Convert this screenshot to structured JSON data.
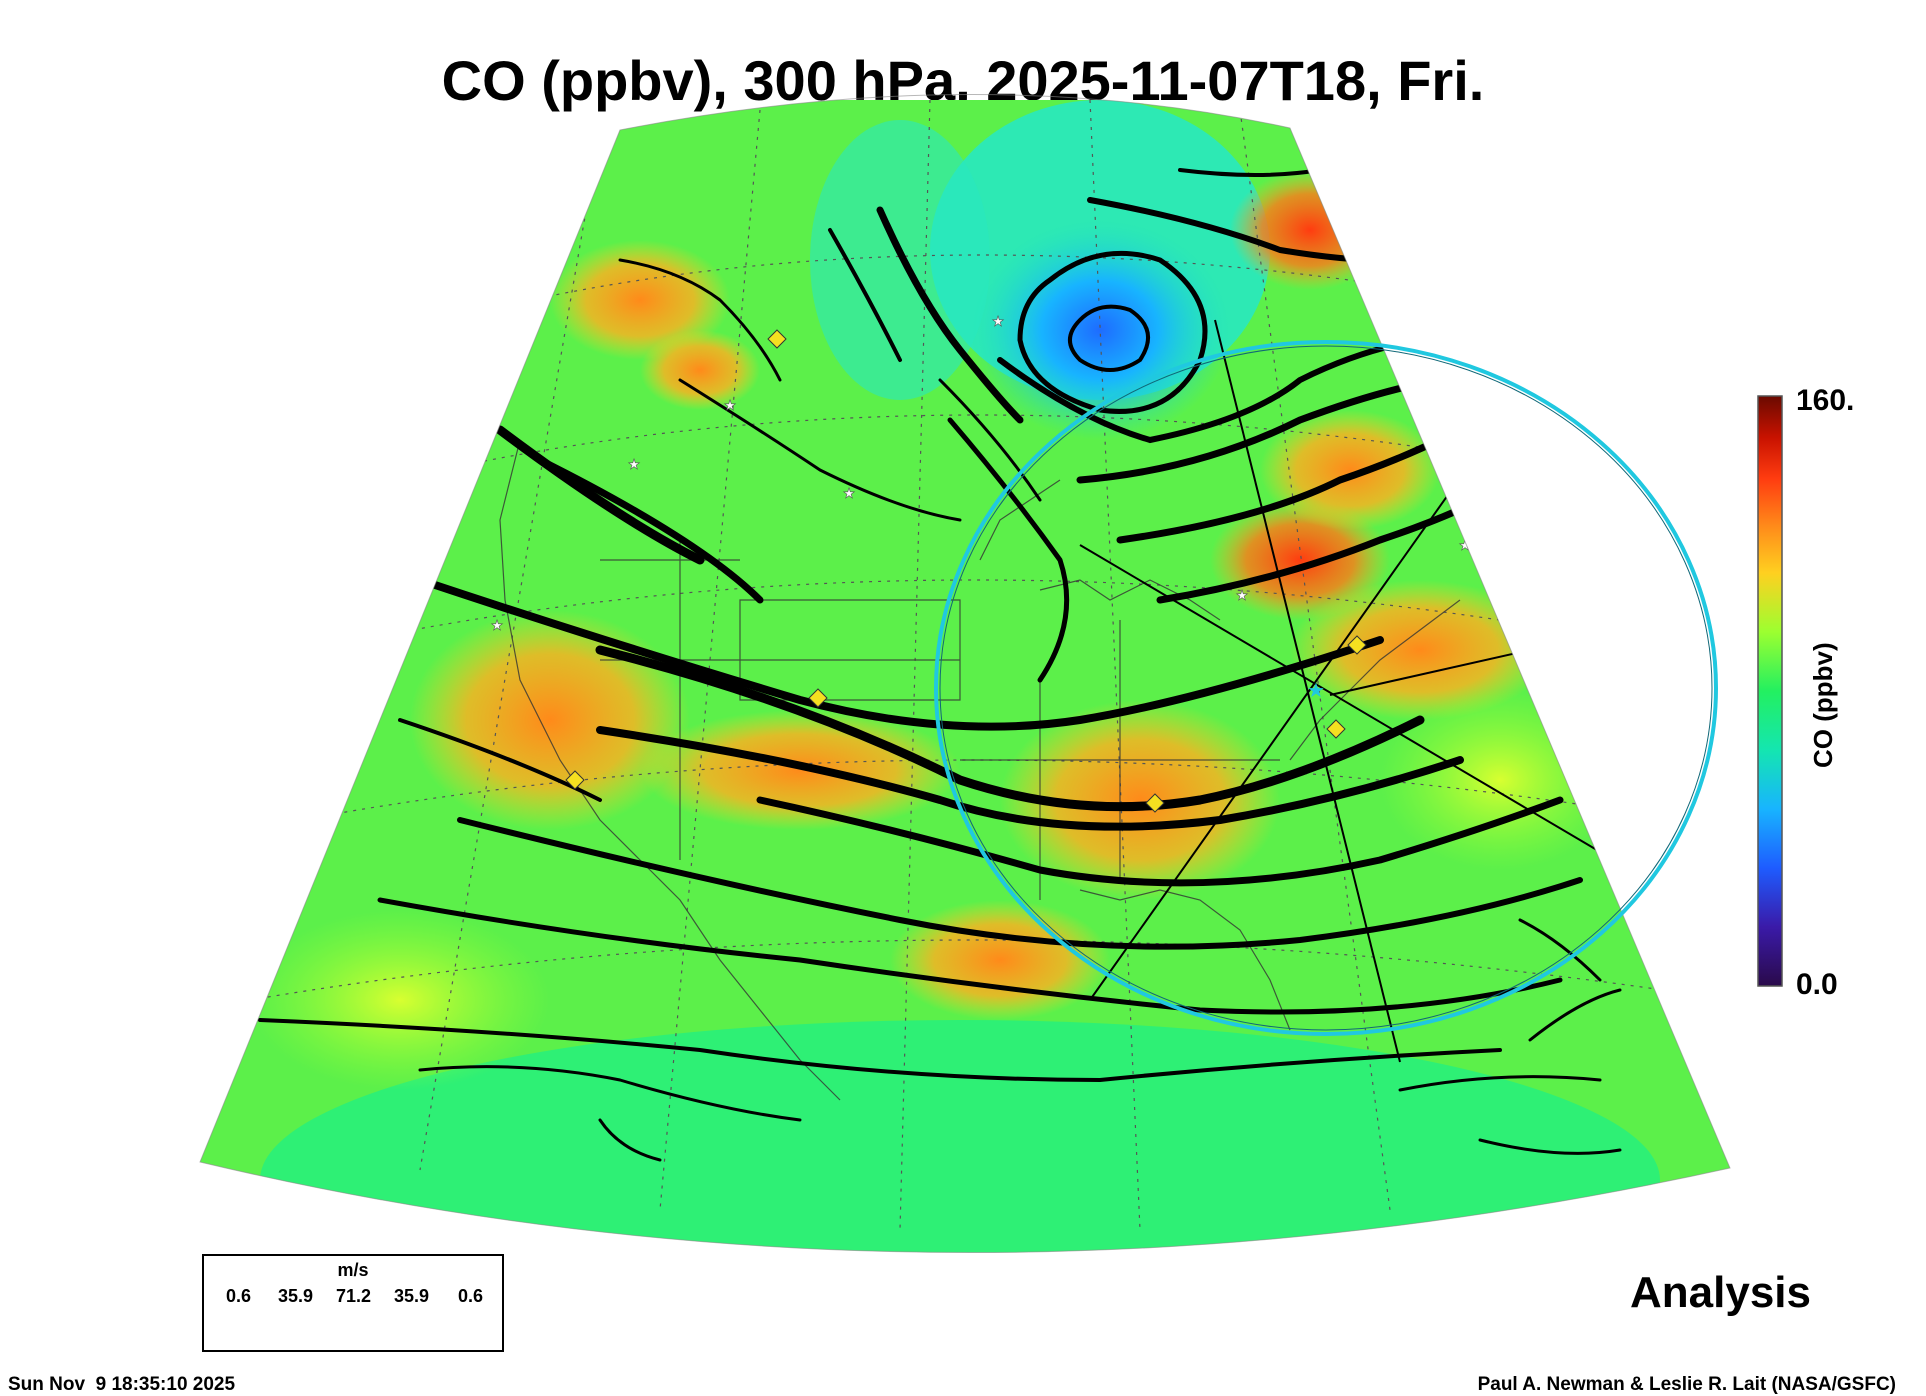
{
  "title": "CO (ppbv), 300 hPa, 2025-11-07T18, Fri.",
  "colorbar": {
    "max_label": "160.",
    "min_label": "0.0",
    "title": "CO (ppbv)",
    "range": [
      0,
      160
    ],
    "stops": [
      "#2a0a4a",
      "#3a1aa8",
      "#1e5cff",
      "#18b4ff",
      "#14e6b0",
      "#23f060",
      "#9cff30",
      "#ffd020",
      "#ff8a1a",
      "#ff3c10",
      "#c81200",
      "#6a0a00"
    ]
  },
  "map": {
    "projection": "conic",
    "region": "North America",
    "field": "CO mixing ratio with streamlines",
    "marker_colors": {
      "ring": "#20c8e0",
      "diamond": "#f5e020",
      "star": "#ffffff",
      "streamline": "#000000"
    }
  },
  "wind_legend": {
    "unit": "m/s",
    "values": [
      "0.6",
      "35.9",
      "71.2",
      "35.9",
      "0.6"
    ]
  },
  "label": "Analysis",
  "footer": {
    "timestamp": "Sun Nov  9 18:35:10 2025",
    "credit": "Paul A. Newman & Leslie R. Lait (NASA/GSFC)"
  }
}
